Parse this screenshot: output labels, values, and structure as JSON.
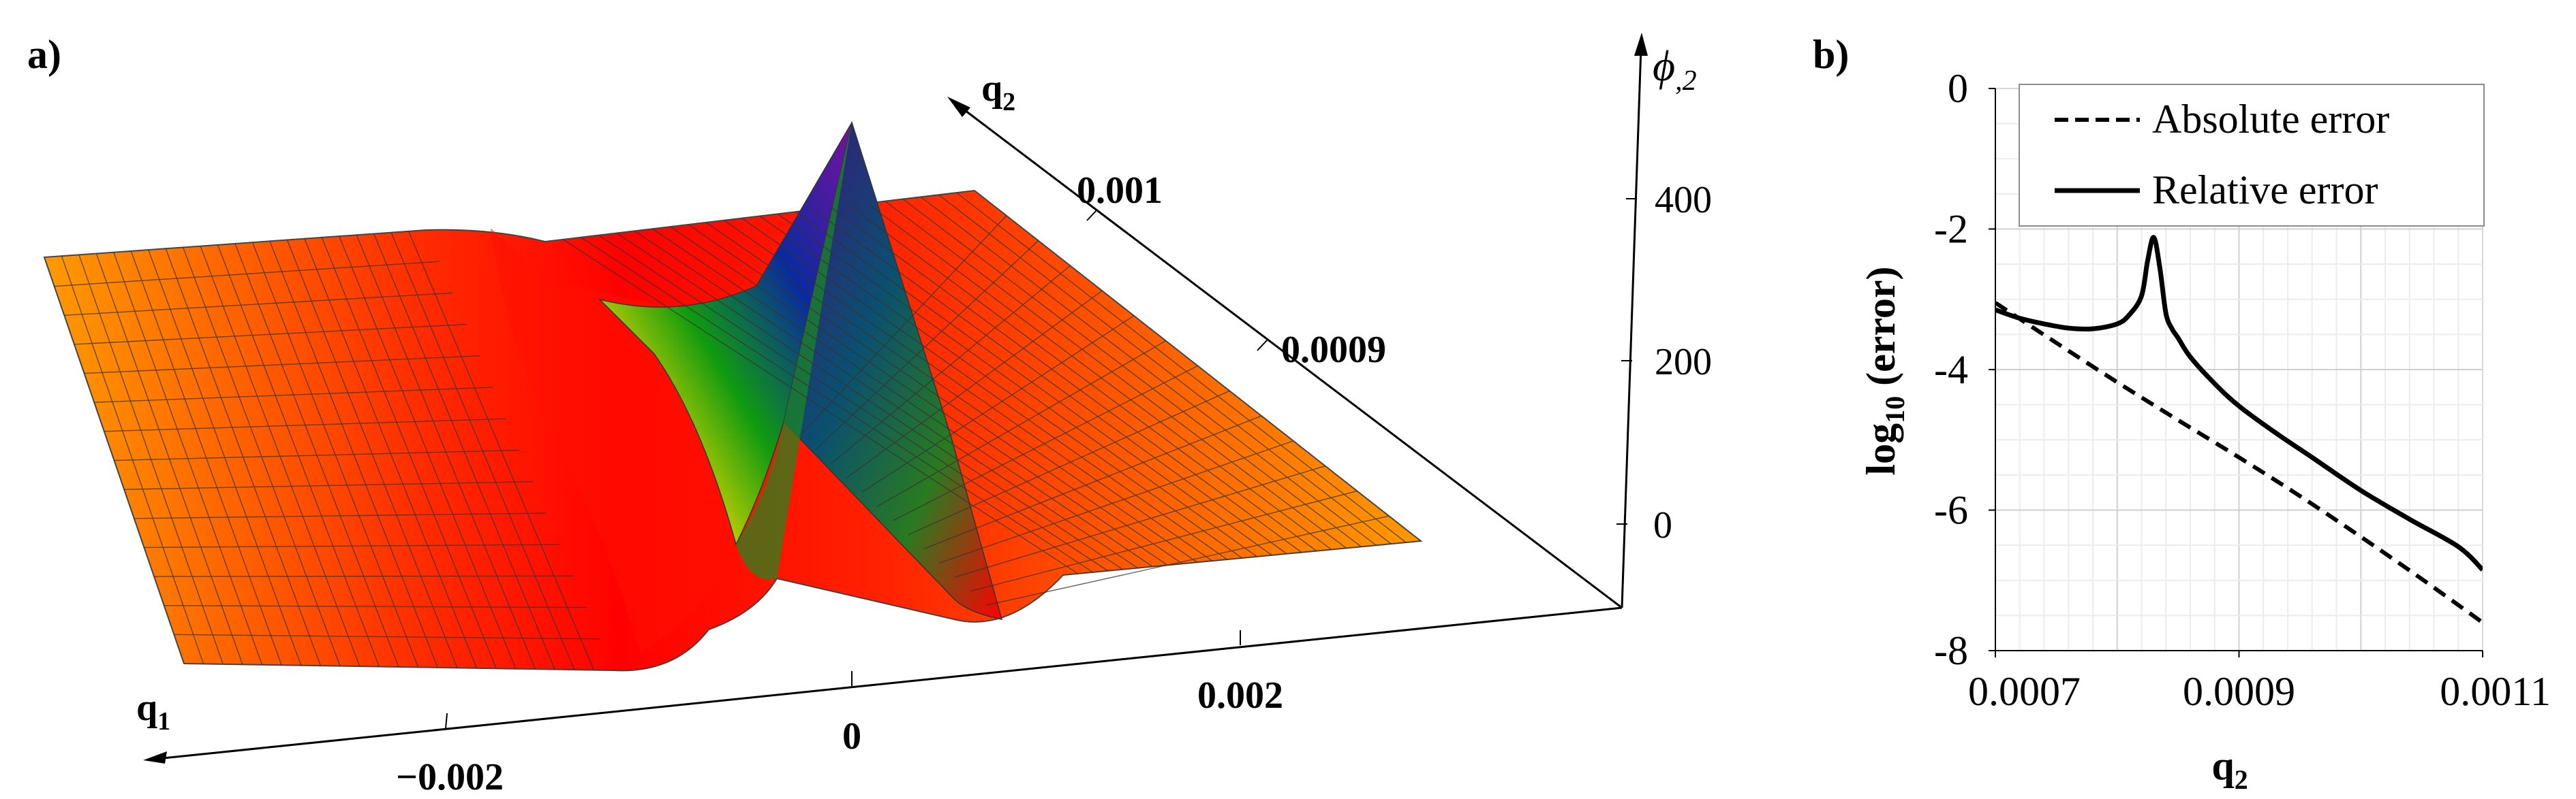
{
  "figure": {
    "panel_a_label": "a)",
    "panel_b_label": "b)"
  },
  "chart_data": [
    {
      "type": "surface",
      "panel": "a)",
      "axes": {
        "q1": {
          "label": "q",
          "label_sub": "1",
          "ticks": [
            {
              "value": -0.002,
              "label": "−0.002"
            },
            {
              "value": 0,
              "label": "0"
            },
            {
              "value": 0.002,
              "label": "0.002"
            }
          ]
        },
        "q2": {
          "label": "q",
          "label_sub": "2",
          "ticks": [
            {
              "value": 0.0009,
              "label": "0.0009"
            },
            {
              "value": 0.001,
              "label": "0.001"
            }
          ]
        },
        "phi": {
          "label": "ϕ",
          "label_sub": ",2",
          "ticks": [
            {
              "value": 0,
              "label": "0"
            },
            {
              "value": 200,
              "label": "200"
            },
            {
              "value": 400,
              "label": "400"
            }
          ]
        }
      },
      "surface": {
        "description_values": {
          "plateau": 0,
          "peak": 480,
          "peak_q1": 0,
          "peak_q2": 0.0007,
          "trough_depth": -40
        },
        "colormap": [
          "#ff9a00",
          "#ff0000",
          "#00aa00",
          "#0000aa",
          "#8800aa"
        ]
      }
    },
    {
      "type": "line",
      "panel": "b)",
      "xlabel": "q",
      "xlabel_sub": "2",
      "ylabel_prefix": "log",
      "ylabel_sub": "10",
      "ylabel_suffix": " (error)",
      "xlim": [
        0.0007,
        0.0011
      ],
      "ylim": [
        -8,
        0
      ],
      "xticks": [
        {
          "value": 0.0007,
          "label": "0.0007"
        },
        {
          "value": 0.0009,
          "label": "0.0009"
        },
        {
          "value": 0.0011,
          "label": "0.0011"
        }
      ],
      "yticks": [
        {
          "value": 0,
          "label": "0"
        },
        {
          "value": -2,
          "label": "-2"
        },
        {
          "value": -4,
          "label": "-4"
        },
        {
          "value": -6,
          "label": "-6"
        },
        {
          "value": -8,
          "label": "-8"
        }
      ],
      "grid": true,
      "legend_position": "top-right",
      "series": [
        {
          "name": "Absolute error",
          "style": "dashed",
          "color": "#000000",
          "x": [
            0.0007,
            0.00075,
            0.0008,
            0.00085,
            0.0009,
            0.00095,
            0.001,
            0.00105,
            0.0011
          ],
          "y": [
            -3.05,
            -3.62,
            -4.18,
            -4.72,
            -5.25,
            -5.8,
            -6.38,
            -6.98,
            -7.6
          ]
        },
        {
          "name": "Relative error",
          "style": "solid",
          "color": "#000000",
          "x": [
            0.0007,
            0.00072,
            0.00074,
            0.00076,
            0.00078,
            0.0008,
            0.00081,
            0.00082,
            0.000825,
            0.00083,
            0.000835,
            0.00084,
            0.000845,
            0.00085,
            0.00086,
            0.00088,
            0.0009,
            0.00093,
            0.00096,
            0.001,
            0.00104,
            0.00108,
            0.0011
          ],
          "y": [
            -3.15,
            -3.27,
            -3.35,
            -3.41,
            -3.42,
            -3.35,
            -3.22,
            -2.95,
            -2.45,
            -2.12,
            -2.55,
            -3.2,
            -3.42,
            -3.55,
            -3.82,
            -4.2,
            -4.52,
            -4.9,
            -5.25,
            -5.72,
            -6.13,
            -6.52,
            -6.85
          ]
        }
      ]
    }
  ]
}
